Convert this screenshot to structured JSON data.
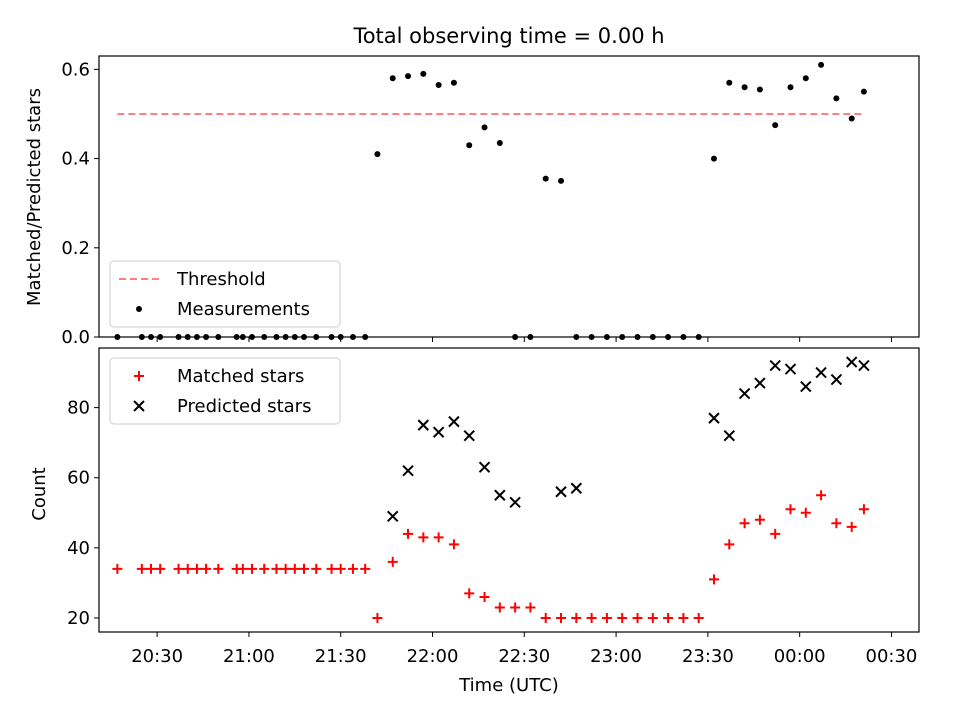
{
  "chart_data": {
    "type": "scatter",
    "title": "Total observing time = 0.00 h",
    "xlabel": "Time (UTC)",
    "xlim": [
      "20:11",
      "00:39"
    ],
    "x_ticks": [
      "20:30",
      "21:00",
      "21:30",
      "22:00",
      "22:30",
      "23:00",
      "23:30",
      "00:00",
      "00:30"
    ],
    "panels": [
      {
        "name": "ratio",
        "ylabel": "Matched/Predicted stars",
        "ylim": [
          0,
          0.63
        ],
        "y_ticks": [
          "0.0",
          "0.2",
          "0.4",
          "0.6"
        ],
        "legend_position": "lower-left",
        "series": [
          {
            "name": "Threshold",
            "kind": "dashed-line",
            "color": "#ff7f7f",
            "x": [
              "20:17",
              "00:21"
            ],
            "y": [
              0.5,
              0.5
            ]
          },
          {
            "name": "Measurements",
            "kind": "dot",
            "color": "#000000",
            "x": [
              "20:17",
              "20:25",
              "20:28",
              "20:31",
              "20:37",
              "20:40",
              "20:43",
              "20:46",
              "20:50",
              "20:56",
              "20:58",
              "21:01",
              "21:05",
              "21:09",
              "21:12",
              "21:15",
              "21:18",
              "21:22",
              "21:27",
              "21:30",
              "21:34",
              "21:38",
              "21:42",
              "21:47",
              "21:52",
              "21:57",
              "22:02",
              "22:07",
              "22:12",
              "22:17",
              "22:22",
              "22:27",
              "22:32",
              "22:37",
              "22:42",
              "22:47",
              "22:52",
              "22:57",
              "23:02",
              "23:07",
              "23:12",
              "23:17",
              "23:22",
              "23:27",
              "23:32",
              "23:37",
              "23:42",
              "23:47",
              "23:52",
              "23:57",
              "00:02",
              "00:07",
              "00:12",
              "00:17",
              "00:21"
            ],
            "y": [
              0,
              0,
              0,
              0,
              0,
              0,
              0,
              0,
              0,
              0,
              0,
              0,
              0,
              0,
              0,
              0,
              0,
              0,
              0,
              0,
              0,
              0,
              0.41,
              0.58,
              0.585,
              0.59,
              0.565,
              0.57,
              0.43,
              0.47,
              0.435,
              0,
              0,
              0.355,
              0.35,
              0,
              0,
              0,
              0,
              0,
              0,
              0,
              0,
              0,
              0.4,
              0.57,
              0.56,
              0.555,
              0.475,
              0.56,
              0.58,
              0.61,
              0.535,
              0.49,
              0.55
            ]
          }
        ]
      },
      {
        "name": "count",
        "ylabel": "Count",
        "ylim": [
          16,
          97
        ],
        "y_ticks": [
          "20",
          "40",
          "60",
          "80"
        ],
        "legend_position": "upper-left",
        "series": [
          {
            "name": "Matched stars",
            "kind": "plus",
            "color": "#ff0000",
            "x": [
              "20:17",
              "20:25",
              "20:28",
              "20:31",
              "20:37",
              "20:40",
              "20:43",
              "20:46",
              "20:50",
              "20:56",
              "20:58",
              "21:01",
              "21:05",
              "21:09",
              "21:12",
              "21:15",
              "21:18",
              "21:22",
              "21:27",
              "21:30",
              "21:34",
              "21:38",
              "21:42",
              "21:47",
              "21:52",
              "21:57",
              "22:02",
              "22:07",
              "22:12",
              "22:17",
              "22:22",
              "22:27",
              "22:32",
              "22:37",
              "22:42",
              "22:47",
              "22:52",
              "22:57",
              "23:02",
              "23:07",
              "23:12",
              "23:17",
              "23:22",
              "23:27",
              "23:32",
              "23:37",
              "23:42",
              "23:47",
              "23:52",
              "23:57",
              "00:02",
              "00:07",
              "00:12",
              "00:17",
              "00:21"
            ],
            "y": [
              34,
              34,
              34,
              34,
              34,
              34,
              34,
              34,
              34,
              34,
              34,
              34,
              34,
              34,
              34,
              34,
              34,
              34,
              34,
              34,
              34,
              34,
              20,
              36,
              44,
              43,
              43,
              41,
              27,
              26,
              23,
              23,
              23,
              20,
              20,
              20,
              20,
              20,
              20,
              20,
              20,
              20,
              20,
              20,
              31,
              41,
              47,
              48,
              44,
              51,
              50,
              55,
              47,
              46,
              51
            ]
          },
          {
            "name": "Predicted stars",
            "kind": "cross",
            "color": "#000000",
            "x": [
              "21:47",
              "21:52",
              "21:57",
              "22:02",
              "22:07",
              "22:12",
              "22:17",
              "22:22",
              "22:27",
              "22:42",
              "22:47",
              "23:32",
              "23:37",
              "23:42",
              "23:47",
              "23:52",
              "23:57",
              "00:02",
              "00:07",
              "00:12",
              "00:17",
              "00:21"
            ],
            "y": [
              49,
              62,
              75,
              73,
              76,
              72,
              63,
              55,
              53,
              56,
              57,
              77,
              72,
              84,
              87,
              92,
              91,
              86,
              90,
              88,
              93,
              92
            ]
          }
        ]
      }
    ]
  }
}
